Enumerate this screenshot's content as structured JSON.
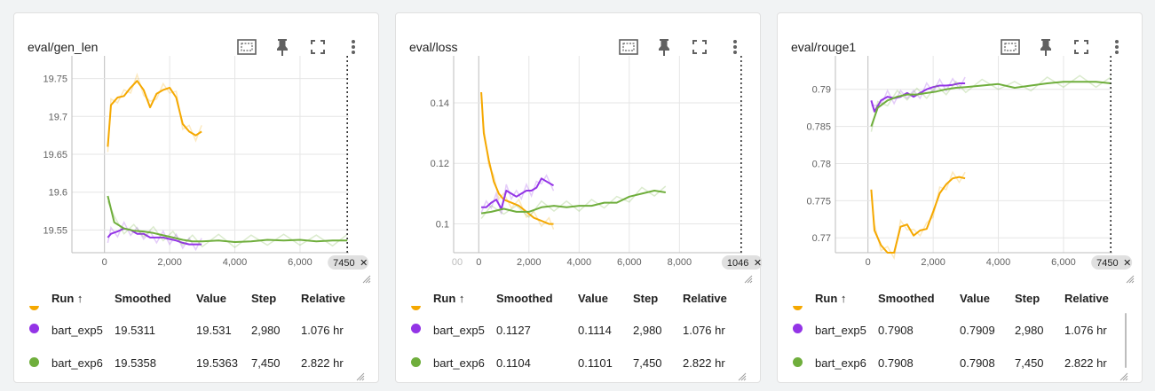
{
  "colors": {
    "exp4": "#f5a800",
    "exp5": "#9334e6",
    "exp6": "#6fae3c"
  },
  "table_headers": {
    "run": "Run ↑",
    "smoothed": "Smoothed",
    "value": "Value",
    "step": "Step",
    "relative": "Relative"
  },
  "cards": [
    {
      "title": "eval/gen_len",
      "rows": [
        {
          "run": "bart_exp5",
          "smoothed": "19.5311",
          "value": "19.531",
          "step": "2,980",
          "relative": "1.076 hr"
        },
        {
          "run": "bart_exp6",
          "smoothed": "19.5358",
          "value": "19.5363",
          "step": "7,450",
          "relative": "2.822 hr"
        }
      ],
      "marker_label": "7450"
    },
    {
      "title": "eval/loss",
      "rows": [
        {
          "run": "bart_exp5",
          "smoothed": "0.1127",
          "value": "0.1114",
          "step": "2,980",
          "relative": "1.076 hr"
        },
        {
          "run": "bart_exp6",
          "smoothed": "0.1104",
          "value": "0.1101",
          "step": "7,450",
          "relative": "2.822 hr"
        }
      ],
      "marker_label": "1046",
      "left_clip_label": "00"
    },
    {
      "title": "eval/rouge1",
      "rows": [
        {
          "run": "bart_exp5",
          "smoothed": "0.7908",
          "value": "0.7909",
          "step": "2,980",
          "relative": "1.076 hr"
        },
        {
          "run": "bart_exp6",
          "smoothed": "0.7908",
          "value": "0.7908",
          "step": "7,450",
          "relative": "2.822 hr"
        }
      ],
      "marker_label": "7450"
    }
  ],
  "chart_data": [
    {
      "type": "line",
      "title": "eval/gen_len",
      "xlim": [
        -1000,
        7500
      ],
      "ylim": [
        19.52,
        19.78
      ],
      "x_ticks": [
        0,
        2000,
        4000,
        6000
      ],
      "x_tick_labels": [
        "0",
        "2,000",
        "4,000",
        "6,000"
      ],
      "y_ticks": [
        19.55,
        19.6,
        19.65,
        19.7,
        19.75
      ],
      "y_tick_labels": [
        "19.55",
        "19.6",
        "19.65",
        "19.7",
        "19.75"
      ],
      "marker_x": 7450,
      "series": [
        {
          "color": "exp4",
          "x": [
            100,
            200,
            400,
            600,
            800,
            1000,
            1200,
            1400,
            1600,
            1800,
            2000,
            2200,
            2400,
            2600,
            2800,
            2980
          ],
          "y": [
            19.66,
            19.715,
            19.725,
            19.727,
            19.738,
            19.747,
            19.735,
            19.712,
            19.73,
            19.735,
            19.738,
            19.725,
            19.69,
            19.68,
            19.675,
            19.68
          ]
        },
        {
          "color": "exp5",
          "x": [
            100,
            200,
            400,
            600,
            800,
            1000,
            1200,
            1400,
            1600,
            1800,
            2000,
            2200,
            2400,
            2600,
            2800,
            2980
          ],
          "y": [
            19.54,
            19.545,
            19.548,
            19.552,
            19.55,
            19.545,
            19.545,
            19.54,
            19.54,
            19.54,
            19.538,
            19.536,
            19.533,
            19.531,
            19.531,
            19.531
          ]
        },
        {
          "color": "exp6",
          "x": [
            100,
            300,
            600,
            900,
            1200,
            1500,
            1800,
            2100,
            2400,
            2700,
            3000,
            3500,
            4000,
            4500,
            5000,
            5500,
            6000,
            6500,
            7000,
            7450
          ],
          "y": [
            19.595,
            19.56,
            19.552,
            19.549,
            19.548,
            19.546,
            19.543,
            19.54,
            19.537,
            19.535,
            19.535,
            19.536,
            19.534,
            19.535,
            19.537,
            19.536,
            19.537,
            19.535,
            19.536,
            19.536
          ]
        }
      ]
    },
    {
      "type": "line",
      "title": "eval/loss",
      "xlim": [
        -1000,
        10500
      ],
      "ylim": [
        0.0905,
        0.1555
      ],
      "x_ticks": [
        0,
        2000,
        4000,
        6000,
        8000
      ],
      "x_tick_labels": [
        "0",
        "2,000",
        "4,000",
        "6,000",
        "8,000"
      ],
      "y_ticks": [
        0.1,
        0.12,
        0.14
      ],
      "y_tick_labels": [
        "0.1",
        "0.12",
        "0.14"
      ],
      "marker_x": 10460,
      "series": [
        {
          "color": "exp4",
          "x": [
            100,
            200,
            400,
            600,
            800,
            1000,
            1300,
            1600,
            1900,
            2200,
            2500,
            2800,
            2980
          ],
          "y": [
            0.1435,
            0.13,
            0.121,
            0.114,
            0.11,
            0.108,
            0.107,
            0.106,
            0.104,
            0.102,
            0.101,
            0.1,
            0.1
          ]
        },
        {
          "color": "exp5",
          "x": [
            100,
            300,
            500,
            700,
            900,
            1100,
            1300,
            1500,
            1700,
            1900,
            2100,
            2300,
            2500,
            2700,
            2980
          ],
          "y": [
            0.1055,
            0.1055,
            0.107,
            0.108,
            0.105,
            0.111,
            0.11,
            0.109,
            0.11,
            0.111,
            0.111,
            0.112,
            0.115,
            0.114,
            0.1127
          ]
        },
        {
          "color": "exp6",
          "x": [
            100,
            500,
            1000,
            1500,
            2000,
            2500,
            3000,
            3500,
            4000,
            4500,
            5000,
            5500,
            6000,
            6500,
            7000,
            7450
          ],
          "y": [
            0.1035,
            0.104,
            0.105,
            0.104,
            0.104,
            0.1055,
            0.106,
            0.1055,
            0.106,
            0.106,
            0.107,
            0.107,
            0.109,
            0.11,
            0.111,
            0.1104
          ]
        }
      ]
    },
    {
      "type": "line",
      "title": "eval/rouge1",
      "xlim": [
        -1000,
        7500
      ],
      "ylim": [
        0.768,
        0.7945
      ],
      "x_ticks": [
        0,
        2000,
        4000,
        6000
      ],
      "x_tick_labels": [
        "0",
        "2,000",
        "4,000",
        "6,000"
      ],
      "y_ticks": [
        0.77,
        0.775,
        0.78,
        0.785,
        0.79
      ],
      "y_tick_labels": [
        "0.77",
        "0.775",
        "0.78",
        "0.785",
        "0.79"
      ],
      "marker_x": 7450,
      "series": [
        {
          "color": "exp4",
          "x": [
            100,
            200,
            400,
            600,
            800,
            1000,
            1200,
            1400,
            1600,
            1800,
            2000,
            2200,
            2400,
            2600,
            2800,
            2980
          ],
          "y": [
            0.7765,
            0.771,
            0.769,
            0.768,
            0.768,
            0.7715,
            0.7718,
            0.7703,
            0.771,
            0.7712,
            0.7735,
            0.776,
            0.7772,
            0.778,
            0.7782,
            0.778
          ]
        },
        {
          "color": "exp5",
          "x": [
            100,
            200,
            400,
            600,
            800,
            1000,
            1200,
            1400,
            1600,
            1800,
            2000,
            2200,
            2400,
            2600,
            2800,
            2980
          ],
          "y": [
            0.7885,
            0.787,
            0.7885,
            0.789,
            0.7888,
            0.789,
            0.7895,
            0.789,
            0.7895,
            0.79,
            0.7903,
            0.7905,
            0.7905,
            0.7906,
            0.7908,
            0.7908
          ]
        },
        {
          "color": "exp6",
          "x": [
            100,
            300,
            600,
            900,
            1200,
            1500,
            1800,
            2100,
            2400,
            2700,
            3000,
            3500,
            4000,
            4500,
            5000,
            5500,
            6000,
            6500,
            7000,
            7450
          ],
          "y": [
            0.785,
            0.7875,
            0.7885,
            0.789,
            0.7893,
            0.7893,
            0.7895,
            0.7897,
            0.79,
            0.7902,
            0.7903,
            0.7905,
            0.7907,
            0.7902,
            0.7905,
            0.7908,
            0.791,
            0.791,
            0.791,
            0.7908
          ]
        }
      ]
    }
  ]
}
